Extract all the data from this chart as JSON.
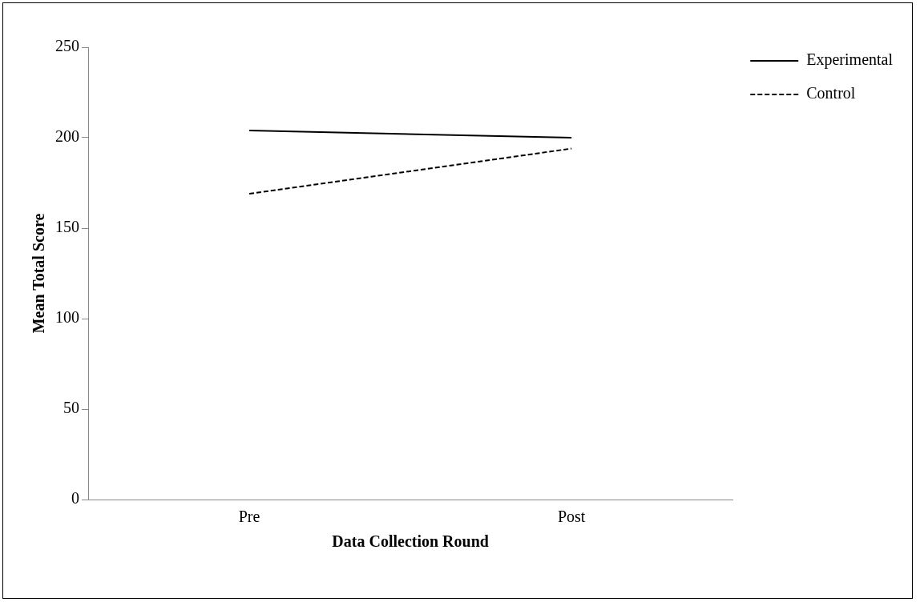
{
  "chart_data": {
    "type": "line",
    "xlabel": "Data Collection Round",
    "ylabel": "Mean Total Score",
    "categories": [
      "Pre",
      "Post"
    ],
    "series": [
      {
        "name": "Experimental",
        "color": "#000000",
        "values": [
          204,
          200
        ],
        "line_style": "solid"
      },
      {
        "name": "Control",
        "color": "#000000",
        "values": [
          169,
          194
        ],
        "line_style": "dashed"
      }
    ],
    "ylim": [
      0,
      250
    ],
    "yticks": [
      0,
      50,
      100,
      150,
      200,
      250
    ],
    "grid": false,
    "legend": "right",
    "marker": "none"
  }
}
